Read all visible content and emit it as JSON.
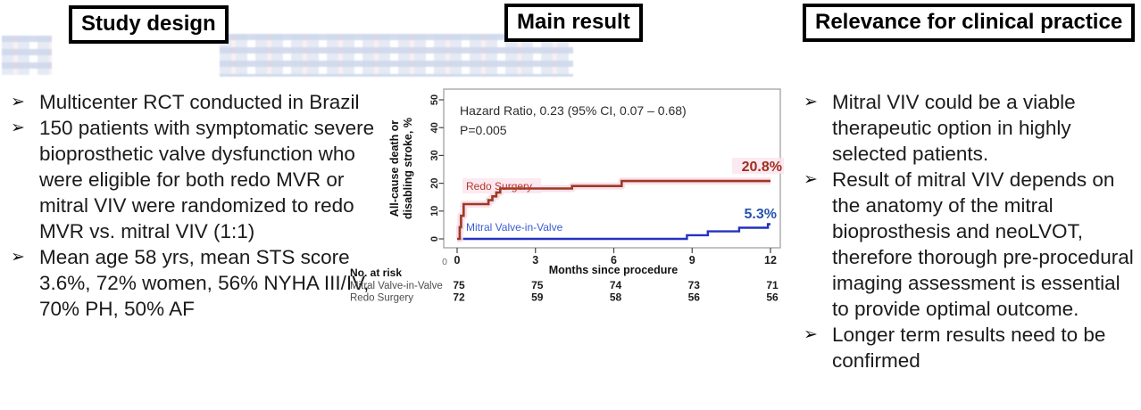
{
  "headers": {
    "study_design": "Study design",
    "main_result": "Main result",
    "relevance": "Relevance for clinical practice"
  },
  "study_design": {
    "bullets": [
      "Multicenter RCT conducted in Brazil",
      "150 patients with symptomatic severe bioprosthetic valve dysfunction who were eligible for both redo MVR or mitral VIV were randomized to redo MVR vs. mitral VIV (1:1)",
      "Mean age 58 yrs, mean STS score 3.6%, 72% women, 56% NYHA III/IV, 70% PH, 50% AF"
    ]
  },
  "relevance": {
    "bullets": [
      "Mitral VIV could be a viable therapeutic option in highly selected patients.",
      "Result of mitral VIV depends on the anatomy of the mitral bioprosthesis and neoLVOT, therefore thorough pre-procedural imaging assessment is essential to provide optimal outcome.",
      "Longer term results need to be confirmed"
    ]
  },
  "chart_data": {
    "type": "line",
    "subtype": "kaplan-meier-step",
    "annotation": [
      "Hazard Ratio, 0.23 (95% CI, 0.07 – 0.68)",
      "P=0.005"
    ],
    "ylabel_lines": [
      "All-cause death or",
      "disabling stroke, %"
    ],
    "xlabel": "Months since procedure",
    "origin_label": "0",
    "xticks": [
      0,
      3,
      6,
      9,
      12
    ],
    "yticks": [
      0,
      10,
      20,
      30,
      40,
      50
    ],
    "xlim": [
      0,
      12
    ],
    "ylim": [
      0,
      50
    ],
    "grid": false,
    "legend_position": "inline-labels",
    "series": [
      {
        "name": "Mitral Valve-in-Valve",
        "color": "#2531c0",
        "label_color": "#3c5cd2",
        "end_label": "5.3%",
        "end_label_color": "#2553ae",
        "points": [
          [
            0,
            0
          ],
          [
            8.75,
            0
          ],
          [
            8.8,
            1.3
          ],
          [
            9.55,
            1.3
          ],
          [
            9.6,
            2.7
          ],
          [
            10.75,
            2.7
          ],
          [
            10.8,
            4.0
          ],
          [
            11.85,
            4.0
          ],
          [
            11.9,
            5.3
          ],
          [
            12,
            5.3
          ]
        ]
      },
      {
        "name": "Redo Surgery",
        "color": "#9c3a22",
        "label_color": "#b13a27",
        "end_label": "20.8%",
        "end_label_color": "#9e2e1c",
        "points": [
          [
            0,
            0
          ],
          [
            0.1,
            4.2
          ],
          [
            0.15,
            8.3
          ],
          [
            0.25,
            12.5
          ],
          [
            1.1,
            12.5
          ],
          [
            1.2,
            13.9
          ],
          [
            1.35,
            15.3
          ],
          [
            1.5,
            16.7
          ],
          [
            1.65,
            18.1
          ],
          [
            4.3,
            18.1
          ],
          [
            4.4,
            19.0
          ],
          [
            6.2,
            19.0
          ],
          [
            6.3,
            20.8
          ],
          [
            12,
            20.8
          ]
        ]
      }
    ],
    "at_risk": {
      "title": "No. at risk",
      "rows": [
        {
          "name": "Mitral Valve-in-Valve",
          "values": [
            "75",
            "75",
            "74",
            "73",
            "71"
          ]
        },
        {
          "name": "Redo Surgery",
          "values": [
            "72",
            "59",
            "58",
            "56",
            "56"
          ]
        }
      ]
    }
  }
}
